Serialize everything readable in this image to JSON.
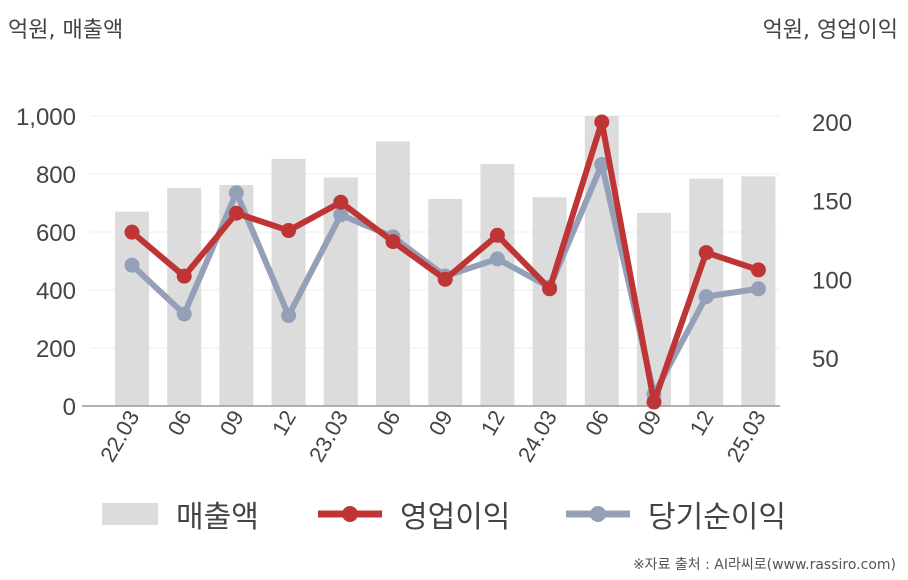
{
  "units": {
    "left": "억원, 매출액",
    "right": "억원, 영업이익"
  },
  "source": "※자료 출처 : AI라씨로(www.rassiro.com)",
  "colors": {
    "bar": "#dcdcdc",
    "operating": "#bf3535",
    "net": "#94a0b8",
    "axis": "#999999",
    "grid": "#eeeeee",
    "text": "#444444"
  },
  "chart_data": {
    "type": "bar+line",
    "categories": [
      "22.03",
      "06",
      "09",
      "12",
      "23.03",
      "06",
      "09",
      "12",
      "24.03",
      "06",
      "09",
      "12",
      "25.03"
    ],
    "series": [
      {
        "name": "매출액",
        "type": "bar",
        "axis": "left",
        "values": [
          670,
          752,
          762,
          852,
          788,
          912,
          714,
          834,
          720,
          1000,
          666,
          784,
          792
        ]
      },
      {
        "name": "영업이익",
        "type": "line",
        "axis": "right",
        "values": [
          130,
          102,
          142,
          131,
          149,
          124,
          100,
          128,
          94,
          200,
          22,
          117,
          106
        ]
      },
      {
        "name": "당기순이익",
        "type": "line",
        "axis": "right",
        "values": [
          109,
          78,
          155,
          77,
          141,
          127,
          102,
          113,
          95,
          173,
          27,
          89,
          94
        ]
      }
    ],
    "left_axis": {
      "ticks": [
        "0",
        "200",
        "400",
        "600",
        "800",
        "1,000"
      ],
      "tick_values": [
        0,
        200,
        400,
        600,
        800,
        1000
      ],
      "ylim": [
        0,
        1000
      ]
    },
    "right_axis": {
      "ticks": [
        "50",
        "100",
        "150",
        "200"
      ],
      "tick_values": [
        50,
        100,
        150,
        200
      ],
      "ylim": [
        18,
        202
      ]
    },
    "legend_position": "bottom",
    "grid": true
  }
}
